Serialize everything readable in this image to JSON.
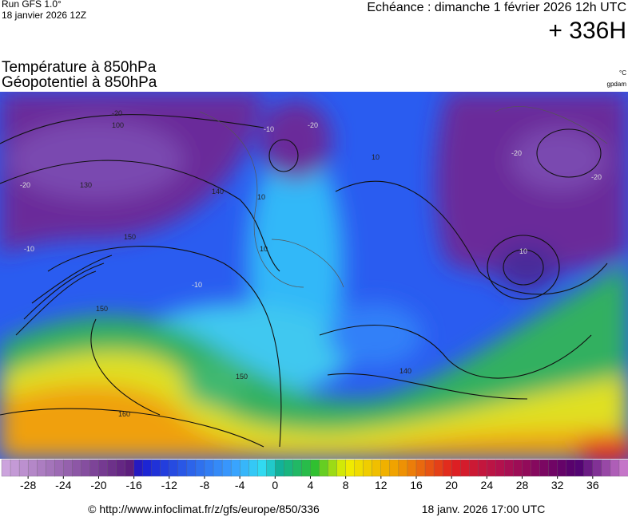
{
  "header": {
    "run": "Run GFS 1.0°",
    "run_date": "18 janvier 2026 12Z",
    "valid": "Echéance : dimanche 1 février 2026 12h UTC",
    "lead": "+ 336H",
    "title1": "Température à 850hPa",
    "title2": "Géopotentiel à 850hPa",
    "unit1": "°C",
    "unit2": "gpdam"
  },
  "map": {
    "contour_labels": [
      "-20",
      "100",
      "130",
      "140",
      "-20",
      "10",
      "-20",
      "-10",
      "10",
      "-20",
      "-10",
      "150",
      "150",
      "10",
      "140",
      "150",
      "160",
      "-10",
      "-20",
      "10"
    ]
  },
  "colorbar": {
    "lim": [
      -31,
      40
    ],
    "ticks": [
      -28,
      -24,
      -20,
      -16,
      -12,
      -8,
      -4,
      0,
      4,
      8,
      12,
      16,
      20,
      24,
      28,
      32,
      36
    ]
  },
  "footer": {
    "source": "© http://www.infoclimat.fr/z/gfs/europe/850/336",
    "generated": "18 janv. 2026 17:00 UTC"
  }
}
